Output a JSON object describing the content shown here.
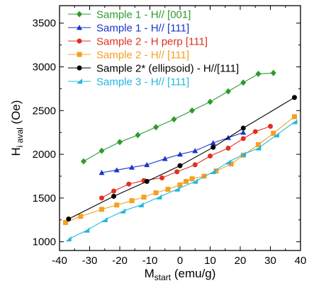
{
  "chart_data": {
    "type": "line",
    "title": "",
    "xlabel": {
      "main": "M",
      "sub": "start",
      "unit": " (emu/g)"
    },
    "ylabel": {
      "main": "H",
      "sub": "i aval",
      "unit": " (Oe)"
    },
    "xlim": [
      -40,
      40
    ],
    "ylim": [
      900,
      3700
    ],
    "xticks": [
      -40,
      -30,
      -20,
      -10,
      0,
      10,
      20,
      30,
      40
    ],
    "yticks": [
      1000,
      1500,
      2000,
      2500,
      3000,
      3500
    ],
    "grid": false,
    "legend": "top-left",
    "series": [
      {
        "name": "Sample 1 - H// [001]",
        "color": "#2e9a2e",
        "marker": "diamond",
        "x": [
          -32,
          -26,
          -20,
          -14,
          -8,
          -2,
          4,
          10,
          16,
          21,
          26,
          31
        ],
        "y": [
          1920,
          2040,
          2140,
          2220,
          2310,
          2400,
          2500,
          2600,
          2720,
          2820,
          2920,
          2930
        ]
      },
      {
        "name": "Sample 1 - H// [111]",
        "color": "#1a35c8",
        "marker": "triangle",
        "x": [
          -26,
          -21,
          -16,
          -11,
          -5,
          0,
          5,
          11,
          16,
          21
        ],
        "y": [
          1790,
          1820,
          1850,
          1880,
          1950,
          2000,
          2040,
          2130,
          2190,
          2250
        ]
      },
      {
        "name": "Sample 2 - H perp [111]",
        "color": "#e03020",
        "marker": "circle",
        "x": [
          -26,
          -22,
          -17,
          -12,
          -6,
          -1,
          5,
          10,
          16,
          21,
          25,
          30
        ],
        "y": [
          1500,
          1580,
          1660,
          1700,
          1730,
          1800,
          1880,
          1980,
          2070,
          2180,
          2260,
          2320
        ]
      },
      {
        "name": "Sample 2 - H// [111]",
        "color": "#f5a020",
        "marker": "square",
        "x": [
          -38,
          -33,
          -26,
          -21,
          -16,
          -12,
          -8,
          -4,
          0,
          2,
          4,
          8,
          12,
          17,
          21,
          26,
          31,
          38
        ],
        "y": [
          1220,
          1290,
          1370,
          1420,
          1470,
          1510,
          1560,
          1600,
          1650,
          1690,
          1720,
          1750,
          1810,
          1890,
          1990,
          2110,
          2240,
          2430
        ]
      },
      {
        "name": "Sample 2* (ellipsoid) - H//[111]",
        "color": "#000000",
        "marker": "circle",
        "x": [
          -37,
          -22,
          -11,
          0,
          11,
          21,
          38
        ],
        "y": [
          1260,
          1520,
          1690,
          1870,
          2080,
          2300,
          2650
        ]
      },
      {
        "name": "Sample 3 - H// [111]",
        "color": "#20b8e0",
        "marker": "half-triangle",
        "x": [
          -37,
          -31,
          -25,
          -19,
          -13,
          -7,
          -1,
          5,
          11,
          16,
          21,
          26,
          32,
          38
        ],
        "y": [
          1030,
          1130,
          1250,
          1350,
          1420,
          1510,
          1600,
          1690,
          1800,
          1910,
          2000,
          2070,
          2220,
          2370
        ]
      }
    ]
  }
}
